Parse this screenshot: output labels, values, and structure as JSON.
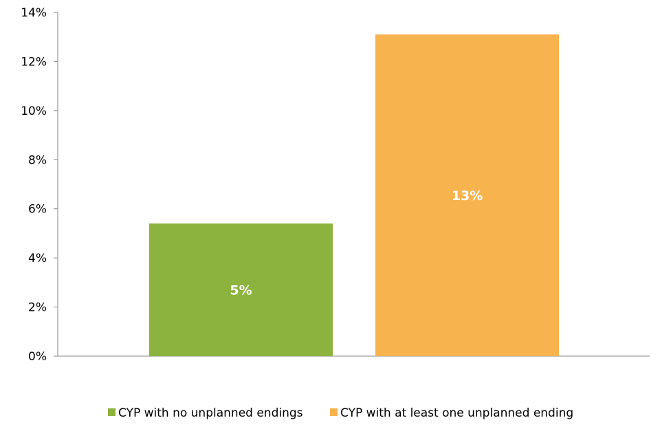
{
  "chart_data": {
    "type": "bar",
    "categories": [
      ""
    ],
    "series": [
      {
        "name": "CYP with no unplanned endings",
        "values": [
          5.4
        ],
        "label": "5%",
        "color": "#8BB33E"
      },
      {
        "name": "CYP with at least one unplanned ending",
        "values": [
          13.1
        ],
        "label": "13%",
        "color": "#F7B34E"
      }
    ],
    "ylim": [
      0,
      14
    ],
    "yticks": [
      0,
      2,
      4,
      6,
      8,
      10,
      12,
      14
    ],
    "ytick_labels": [
      "0%",
      "2%",
      "4%",
      "6%",
      "8%",
      "10%",
      "12%",
      "14%"
    ],
    "grid": false,
    "legend_position": "bottom",
    "title": "",
    "xlabel": "",
    "ylabel": ""
  }
}
